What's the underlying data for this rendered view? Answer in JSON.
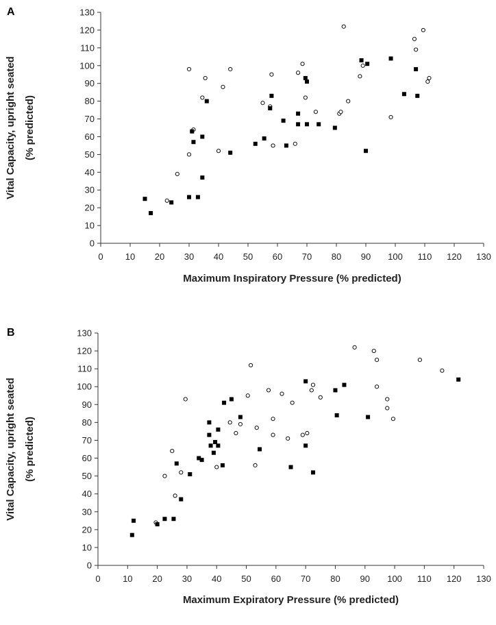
{
  "chart_data": [
    {
      "panel": "A",
      "type": "scatter",
      "xlabel": "Maximum Inspiratory Pressure (% predicted)",
      "ylabel": [
        "Vital Capacity, upright seated",
        "(% predicted)"
      ],
      "xlim": [
        0,
        130
      ],
      "ylim": [
        0,
        130
      ],
      "xticks": [
        0,
        10,
        20,
        30,
        40,
        50,
        60,
        70,
        80,
        90,
        100,
        110,
        120,
        130
      ],
      "yticks": [
        0,
        10,
        20,
        30,
        40,
        50,
        60,
        70,
        80,
        90,
        100,
        110,
        120,
        130
      ],
      "grid": false,
      "series": [
        {
          "marker": "open-circle",
          "color": "#000000",
          "points": [
            [
              22.5,
              24
            ],
            [
              26,
              39
            ],
            [
              30,
              98
            ],
            [
              30,
              50
            ],
            [
              31,
              63
            ],
            [
              31.5,
              64
            ],
            [
              34.5,
              82
            ],
            [
              35.5,
              93
            ],
            [
              40,
              52
            ],
            [
              41.5,
              88
            ],
            [
              44,
              98
            ],
            [
              55,
              79
            ],
            [
              57.5,
              77
            ],
            [
              58,
              95
            ],
            [
              58.5,
              55
            ],
            [
              66,
              56
            ],
            [
              67,
              96
            ],
            [
              68.5,
              101
            ],
            [
              69.5,
              82
            ],
            [
              73,
              74
            ],
            [
              81,
              73
            ],
            [
              81.5,
              74
            ],
            [
              82.5,
              122
            ],
            [
              84,
              80
            ],
            [
              88,
              94
            ],
            [
              89,
              100
            ],
            [
              98.5,
              71
            ],
            [
              106.5,
              115
            ],
            [
              107,
              109
            ],
            [
              109.5,
              120
            ],
            [
              111,
              91
            ],
            [
              111.5,
              93
            ]
          ]
        },
        {
          "marker": "filled-square",
          "color": "#000000",
          "points": [
            [
              15,
              25
            ],
            [
              17,
              17
            ],
            [
              24,
              23
            ],
            [
              30,
              26
            ],
            [
              31,
              63
            ],
            [
              31.5,
              57
            ],
            [
              33,
              26
            ],
            [
              34.5,
              60
            ],
            [
              34.5,
              37
            ],
            [
              36,
              80
            ],
            [
              44,
              51
            ],
            [
              52.5,
              56
            ],
            [
              55.5,
              59
            ],
            [
              57.5,
              76
            ],
            [
              58,
              83
            ],
            [
              62,
              69
            ],
            [
              63,
              55
            ],
            [
              67,
              73
            ],
            [
              67,
              67
            ],
            [
              69.5,
              93
            ],
            [
              70,
              91
            ],
            [
              70,
              67
            ],
            [
              74,
              67
            ],
            [
              79.5,
              65
            ],
            [
              88.5,
              103
            ],
            [
              90,
              52
            ],
            [
              90.5,
              101
            ],
            [
              98.5,
              104
            ],
            [
              103,
              84
            ],
            [
              107,
              98
            ],
            [
              107.5,
              83
            ]
          ]
        }
      ]
    },
    {
      "panel": "B",
      "type": "scatter",
      "xlabel": "Maximum Expiratory Pressure (% predicted)",
      "ylabel": [
        "Vital Capacity, upright seated",
        "(% predicted)"
      ],
      "xlim": [
        0,
        130
      ],
      "ylim": [
        0,
        130
      ],
      "xticks": [
        0,
        10,
        20,
        30,
        40,
        50,
        60,
        70,
        80,
        90,
        100,
        110,
        120,
        130
      ],
      "yticks": [
        0,
        10,
        20,
        30,
        40,
        50,
        60,
        70,
        80,
        90,
        100,
        110,
        120,
        130
      ],
      "grid": false,
      "series": [
        {
          "marker": "open-circle",
          "color": "#000000",
          "points": [
            [
              19.5,
              24
            ],
            [
              22.5,
              50
            ],
            [
              25,
              64
            ],
            [
              26,
              39
            ],
            [
              28,
              52
            ],
            [
              29.5,
              93
            ],
            [
              40,
              55
            ],
            [
              44.5,
              80
            ],
            [
              46.5,
              74
            ],
            [
              48,
              79
            ],
            [
              50.5,
              95
            ],
            [
              51.5,
              112
            ],
            [
              53,
              56
            ],
            [
              53.5,
              77
            ],
            [
              57.5,
              98
            ],
            [
              59,
              82
            ],
            [
              59,
              73
            ],
            [
              62,
              96
            ],
            [
              64,
              71
            ],
            [
              65.5,
              91
            ],
            [
              69,
              73
            ],
            [
              70.5,
              74
            ],
            [
              72,
              98
            ],
            [
              72.5,
              101
            ],
            [
              75,
              94
            ],
            [
              86.5,
              122
            ],
            [
              93,
              120
            ],
            [
              94,
              115
            ],
            [
              94,
              100
            ],
            [
              97.5,
              93
            ],
            [
              97.5,
              88
            ],
            [
              99.5,
              82
            ],
            [
              108.5,
              115
            ],
            [
              116,
              109
            ]
          ]
        },
        {
          "marker": "filled-square",
          "color": "#000000",
          "points": [
            [
              11.5,
              17
            ],
            [
              12,
              25
            ],
            [
              20,
              23
            ],
            [
              22.5,
              26
            ],
            [
              25.5,
              26
            ],
            [
              26.5,
              57
            ],
            [
              28,
              37
            ],
            [
              31,
              51
            ],
            [
              34,
              60
            ],
            [
              35,
              59
            ],
            [
              37.5,
              80
            ],
            [
              37.5,
              73
            ],
            [
              38,
              67
            ],
            [
              39,
              63
            ],
            [
              39.5,
              69
            ],
            [
              40.5,
              76
            ],
            [
              40.5,
              67
            ],
            [
              42,
              56
            ],
            [
              42.5,
              91
            ],
            [
              45,
              93
            ],
            [
              48,
              83
            ],
            [
              54.5,
              65
            ],
            [
              65,
              55
            ],
            [
              70,
              103
            ],
            [
              70,
              67
            ],
            [
              72.5,
              52
            ],
            [
              80,
              98
            ],
            [
              80.5,
              84
            ],
            [
              83,
              101
            ],
            [
              91,
              83
            ],
            [
              121.5,
              104
            ]
          ]
        }
      ]
    }
  ]
}
